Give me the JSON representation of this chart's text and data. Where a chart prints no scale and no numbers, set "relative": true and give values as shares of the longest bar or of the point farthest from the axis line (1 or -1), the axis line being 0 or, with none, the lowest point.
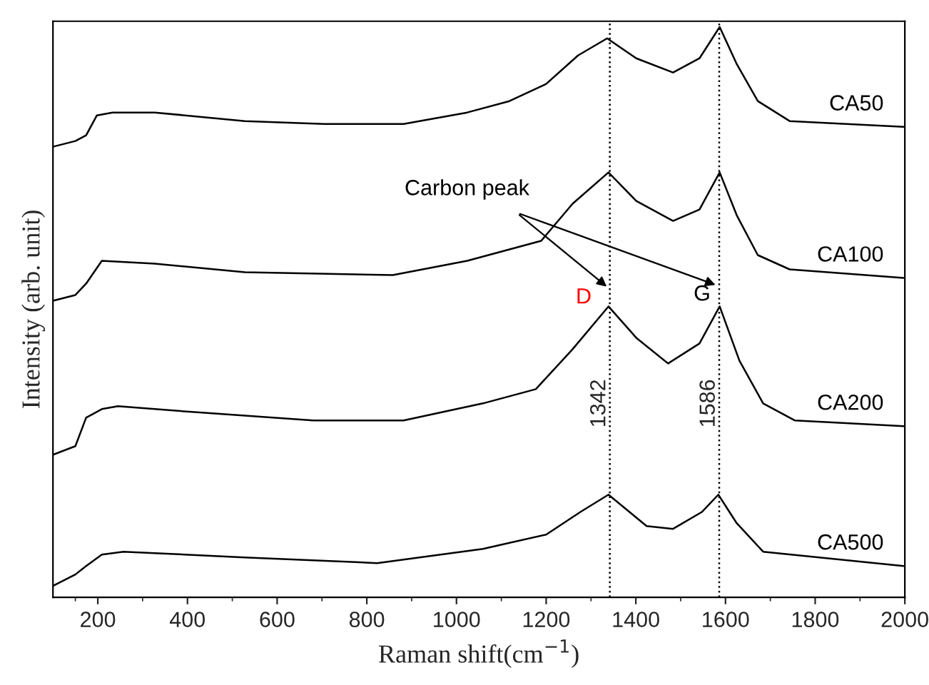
{
  "chart_data": {
    "type": "line",
    "relative": true,
    "xlabel": "Raman shift(cm$^{−1}$)",
    "ylabel": "Intensity (arb. unit)",
    "xlim": [
      100,
      2000
    ],
    "xticks": [
      200,
      400,
      600,
      800,
      1000,
      1200,
      1400,
      1600,
      1800,
      2000
    ],
    "tick_labels": "x",
    "grid": false,
    "marker": "none",
    "line_style": "solid",
    "series": [
      {
        "name": "CA50",
        "color": "#000000",
        "x": [
          100,
          150,
          174,
          198,
          233,
          327,
          528,
          705,
          882,
          1024,
          1118,
          1200,
          1271,
          1336,
          1401,
          1483,
          1542,
          1587,
          1625,
          1672,
          1743,
          1997
        ],
        "values": [
          0.79,
          0.8,
          0.81,
          0.845,
          0.85,
          0.85,
          0.835,
          0.83,
          0.83,
          0.85,
          0.87,
          0.9,
          0.95,
          0.98,
          0.945,
          0.92,
          0.945,
          1.0,
          0.935,
          0.87,
          0.835,
          0.825
        ]
      },
      {
        "name": "CA100",
        "color": "#000000",
        "x": [
          100,
          150,
          174,
          209,
          327,
          528,
          858,
          1024,
          1189,
          1259,
          1339,
          1401,
          1483,
          1542,
          1587,
          1625,
          1672,
          1743,
          1997
        ],
        "values": [
          0.52,
          0.53,
          0.55,
          0.59,
          0.585,
          0.57,
          0.565,
          0.59,
          0.625,
          0.69,
          0.745,
          0.695,
          0.66,
          0.68,
          0.745,
          0.67,
          0.6,
          0.575,
          0.56
        ]
      },
      {
        "name": "CA200",
        "color": "#000000",
        "x": [
          100,
          150,
          174,
          209,
          245,
          410,
          681,
          882,
          1059,
          1177,
          1259,
          1339,
          1401,
          1472,
          1542,
          1587,
          1631,
          1684,
          1755,
          1997
        ],
        "values": [
          0.25,
          0.265,
          0.315,
          0.33,
          0.335,
          0.325,
          0.31,
          0.31,
          0.34,
          0.365,
          0.435,
          0.51,
          0.455,
          0.41,
          0.445,
          0.51,
          0.415,
          0.34,
          0.31,
          0.3
        ]
      },
      {
        "name": "CA500",
        "color": "#000000",
        "x": [
          100,
          150,
          174,
          209,
          257,
          528,
          823,
          1059,
          1200,
          1277,
          1339,
          1424,
          1483,
          1548,
          1584,
          1625,
          1684,
          1997
        ],
        "values": [
          0.02,
          0.04,
          0.055,
          0.075,
          0.08,
          0.07,
          0.06,
          0.085,
          0.11,
          0.15,
          0.18,
          0.125,
          0.12,
          0.15,
          0.18,
          0.13,
          0.08,
          0.055
        ]
      }
    ],
    "ref_lines": [
      {
        "axis": "x",
        "value": 1342,
        "label": "1342",
        "color": "#000000",
        "line_style": "dotted"
      },
      {
        "axis": "x",
        "value": 1586,
        "label": "1586",
        "color": "#000000",
        "line_style": "dotted"
      }
    ],
    "annotations": [
      "Carbon peak",
      "D",
      "G"
    ]
  }
}
